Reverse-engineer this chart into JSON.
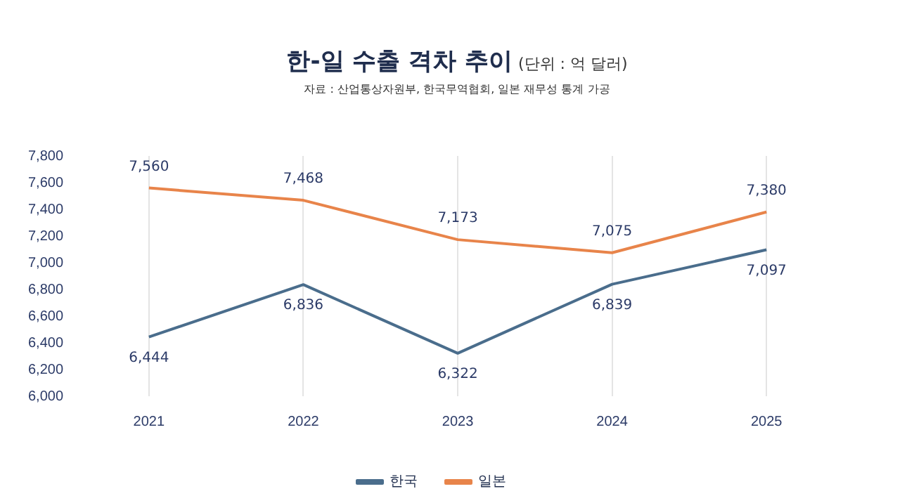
{
  "chart_data": {
    "type": "line",
    "title": "한-일 수출 격차 추이",
    "subtitle": "자료 : 산업통상자원부, 한국무역협회, 일본 재무성 통계 가공",
    "annotations": [
      "(단위 : 억 달러)"
    ],
    "categories": [
      "2021",
      "2022",
      "2023",
      "2024",
      "2025"
    ],
    "series": [
      {
        "name": "한국",
        "color": "#4a6d8c",
        "values": [
          6444,
          6836,
          6322,
          6839,
          7097
        ],
        "value_labels": [
          "6,444",
          "6,836",
          "6,322",
          "6,839",
          "7,097"
        ]
      },
      {
        "name": "일본",
        "color": "#e8844a",
        "values": [
          7560,
          7468,
          7173,
          7075,
          7380
        ],
        "value_labels": [
          "7,560",
          "7,468",
          "7,173",
          "7,075",
          "7,380"
        ]
      }
    ],
    "ylim": [
      6000,
      7800
    ],
    "yticks": [
      {
        "value": 6000,
        "label": "6,000"
      },
      {
        "value": 6200,
        "label": "6,200"
      },
      {
        "value": 6400,
        "label": "6,400"
      },
      {
        "value": 6600,
        "label": "6,600"
      },
      {
        "value": 6800,
        "label": "6,800"
      },
      {
        "value": 7000,
        "label": "7,000"
      },
      {
        "value": 7200,
        "label": "7,200"
      },
      {
        "value": 7400,
        "label": "7,400"
      },
      {
        "value": 7600,
        "label": "7,600"
      },
      {
        "value": 7800,
        "label": "7,800"
      }
    ],
    "grid": "x",
    "legend": "bottom",
    "marker": "none",
    "line_style": "solid"
  }
}
